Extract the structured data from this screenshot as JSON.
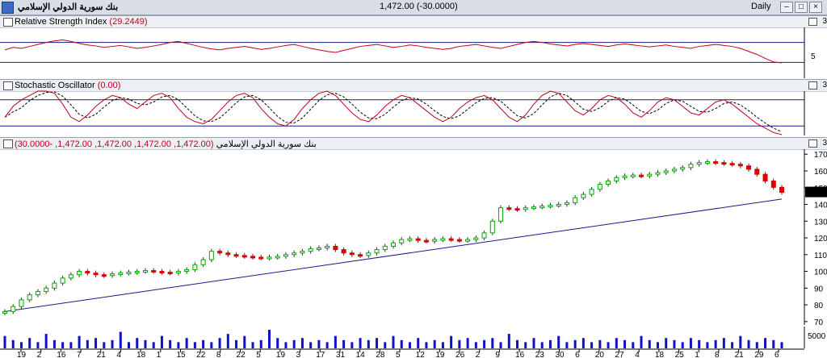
{
  "window": {
    "title": "بنك سورية الدولي الإسلامي",
    "quote": "1,472.00 (-30.0000)",
    "period": "Daily"
  },
  "panes": {
    "rsi": {
      "label": "Relative Strength Index",
      "value": "(29.2449)",
      "axis_label": "5",
      "side_num": "3"
    },
    "stoch": {
      "label": "Stochastic Oscillator",
      "value": "(0.00)",
      "side_num": "3"
    },
    "price": {
      "label": "بنك سورية الدولي الإسلامي",
      "value": "(1,472.00, 1,472.00, 1,472.00, 1,472.00, -30.0000)",
      "side_num": "3",
      "last_price_tag": "1472.00"
    },
    "volume": {
      "axis_label": "5000"
    }
  },
  "colors": {
    "up": "#00aa00",
    "down": "#dd0000",
    "indicator": "#c0001a",
    "trendline": "#1a1a8c",
    "volume": "#1010c8"
  },
  "chart_data": {
    "type": "candlestick",
    "price_axis_ticks": [
      70,
      80,
      90,
      100,
      110,
      120,
      130,
      140,
      150,
      160,
      170
    ],
    "price_axis_note": "tick labels printed without trailing zero: 700 … 1700",
    "price_ylim": [
      680,
      1730
    ],
    "date_ticks": [
      "19",
      "2",
      "16",
      "7",
      "21",
      "4",
      "18",
      "1",
      "15",
      "22",
      "8",
      "22",
      "5",
      "19",
      "3",
      "17",
      "31",
      "14",
      "28",
      "5",
      "12",
      "19",
      "26",
      "2",
      "9",
      "16",
      "23",
      "30",
      "6",
      "20",
      "27",
      "4",
      "18",
      "25",
      "1",
      "8",
      "21",
      "29",
      "6"
    ],
    "closes": [
      760,
      790,
      830,
      860,
      880,
      900,
      930,
      960,
      980,
      1000,
      990,
      980,
      975,
      985,
      990,
      995,
      1000,
      1005,
      1000,
      995,
      990,
      1000,
      1010,
      1040,
      1070,
      1120,
      1110,
      1100,
      1095,
      1090,
      1085,
      1080,
      1085,
      1090,
      1100,
      1110,
      1120,
      1135,
      1140,
      1150,
      1130,
      1110,
      1100,
      1095,
      1110,
      1130,
      1150,
      1170,
      1190,
      1195,
      1185,
      1180,
      1190,
      1195,
      1190,
      1185,
      1190,
      1200,
      1230,
      1300,
      1380,
      1375,
      1370,
      1380,
      1385,
      1390,
      1395,
      1400,
      1410,
      1440,
      1460,
      1490,
      1520,
      1540,
      1560,
      1570,
      1575,
      1570,
      1580,
      1590,
      1600,
      1610,
      1620,
      1640,
      1650,
      1655,
      1650,
      1645,
      1640,
      1630,
      1610,
      1580,
      1540,
      1502,
      1472
    ],
    "trendline": {
      "start": 760,
      "end": 1432
    },
    "volume_values": [
      6,
      4,
      3,
      5,
      3,
      7,
      4,
      3,
      3,
      6,
      4,
      5,
      3,
      4,
      8,
      3,
      5,
      4,
      3,
      6,
      4,
      3,
      5,
      3,
      4,
      3,
      5,
      7,
      4,
      6,
      3,
      4,
      9,
      5,
      3,
      4,
      5,
      3,
      4,
      3,
      6,
      4,
      3,
      5,
      4,
      5,
      3,
      6,
      4,
      3,
      5,
      3,
      4,
      3,
      6,
      4,
      5,
      3,
      4,
      5,
      3,
      7,
      4,
      3,
      5,
      3,
      4,
      6,
      3,
      4,
      5,
      3,
      4,
      3,
      5,
      4,
      3,
      6,
      4,
      3,
      5,
      4,
      3,
      5,
      4,
      3,
      4,
      5,
      3,
      6,
      4,
      3,
      5,
      4,
      3
    ],
    "rsi_values": [
      55,
      60,
      58,
      62,
      66,
      70,
      73,
      75,
      72,
      68,
      65,
      63,
      60,
      62,
      64,
      61,
      58,
      60,
      63,
      66,
      70,
      72,
      68,
      64,
      60,
      57,
      55,
      58,
      60,
      62,
      59,
      56,
      58,
      61,
      64,
      66,
      62,
      58,
      55,
      52,
      50,
      54,
      58,
      62,
      64,
      66,
      63,
      60,
      62,
      65,
      63,
      60,
      58,
      56,
      58,
      62,
      64,
      66,
      63,
      60,
      58,
      62,
      66,
      70,
      72,
      70,
      67,
      65,
      63,
      66,
      68,
      66,
      64,
      62,
      65,
      67,
      65,
      63,
      61,
      63,
      65,
      62,
      60,
      58,
      62,
      64,
      66,
      64,
      62,
      58,
      52,
      46,
      38,
      31,
      29
    ],
    "rsi_lines": [
      70,
      30
    ],
    "stoch_k": [
      40,
      65,
      80,
      90,
      100,
      100,
      95,
      70,
      40,
      30,
      45,
      65,
      80,
      90,
      85,
      70,
      60,
      75,
      90,
      95,
      85,
      60,
      40,
      30,
      25,
      35,
      55,
      75,
      90,
      95,
      85,
      60,
      40,
      25,
      20,
      35,
      60,
      80,
      95,
      100,
      90,
      70,
      50,
      35,
      30,
      45,
      65,
      80,
      90,
      85,
      70,
      55,
      40,
      30,
      40,
      60,
      75,
      85,
      90,
      80,
      60,
      40,
      30,
      45,
      70,
      90,
      100,
      95,
      75,
      55,
      45,
      60,
      80,
      90,
      85,
      70,
      50,
      40,
      55,
      75,
      85,
      80,
      65,
      50,
      45,
      60,
      75,
      80,
      70,
      55,
      40,
      25,
      15,
      5,
      0
    ],
    "stoch_lines": [
      80,
      20
    ]
  }
}
